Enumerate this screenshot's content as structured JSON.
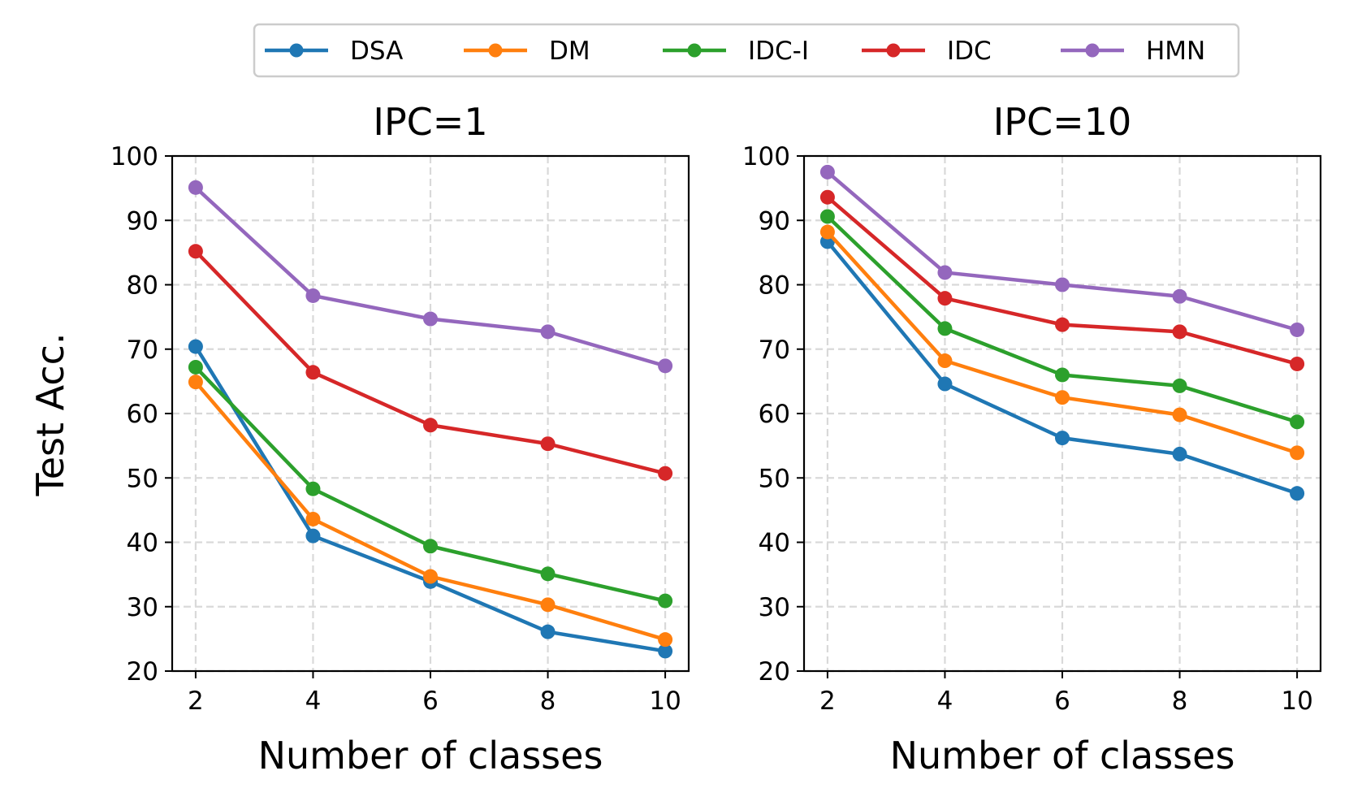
{
  "figure": {
    "ylabel": "Test Acc.",
    "legend": {
      "placement": "top-center",
      "entries": [
        {
          "name": "DSA",
          "color": "#1f77b4"
        },
        {
          "name": "DM",
          "color": "#ff7f0e"
        },
        {
          "name": "IDC-I",
          "color": "#2ca02c"
        },
        {
          "name": "IDC",
          "color": "#d62728"
        },
        {
          "name": "HMN",
          "color": "#9467bd"
        }
      ]
    }
  },
  "chart_data": [
    {
      "type": "line",
      "title": "IPC=1",
      "xlabel": "Number of classes",
      "ylabel": "Test Acc.",
      "x": [
        2,
        4,
        6,
        8,
        10
      ],
      "xticks": [
        "2",
        "4",
        "6",
        "8",
        "10"
      ],
      "yticks": [
        "20",
        "30",
        "40",
        "50",
        "60",
        "70",
        "80",
        "90",
        "100"
      ],
      "xlim": [
        1.6,
        10.4
      ],
      "ylim": [
        20,
        100
      ],
      "grid": true,
      "series": [
        {
          "name": "DSA",
          "color": "#1f77b4",
          "values": [
            70.4,
            41.0,
            33.9,
            26.1,
            23.1
          ]
        },
        {
          "name": "DM",
          "color": "#ff7f0e",
          "values": [
            64.9,
            43.6,
            34.7,
            30.3,
            24.9
          ]
        },
        {
          "name": "IDC-I",
          "color": "#2ca02c",
          "values": [
            67.2,
            48.3,
            39.4,
            35.1,
            30.9
          ]
        },
        {
          "name": "IDC",
          "color": "#d62728",
          "values": [
            85.2,
            66.4,
            58.2,
            55.3,
            50.7
          ]
        },
        {
          "name": "HMN",
          "color": "#9467bd",
          "values": [
            95.1,
            78.3,
            74.7,
            72.7,
            67.4
          ]
        }
      ]
    },
    {
      "type": "line",
      "title": "IPC=10",
      "xlabel": "Number of classes",
      "ylabel": "",
      "x": [
        2,
        4,
        6,
        8,
        10
      ],
      "xticks": [
        "2",
        "4",
        "6",
        "8",
        "10"
      ],
      "yticks": [
        "20",
        "30",
        "40",
        "50",
        "60",
        "70",
        "80",
        "90",
        "100"
      ],
      "xlim": [
        1.6,
        10.4
      ],
      "ylim": [
        20,
        100
      ],
      "grid": true,
      "series": [
        {
          "name": "DSA",
          "color": "#1f77b4",
          "values": [
            86.7,
            64.6,
            56.2,
            53.7,
            47.6
          ]
        },
        {
          "name": "DM",
          "color": "#ff7f0e",
          "values": [
            88.2,
            68.2,
            62.5,
            59.8,
            53.9
          ]
        },
        {
          "name": "IDC-I",
          "color": "#2ca02c",
          "values": [
            90.6,
            73.2,
            66.0,
            64.3,
            58.7
          ]
        },
        {
          "name": "IDC",
          "color": "#d62728",
          "values": [
            93.6,
            77.9,
            73.8,
            72.7,
            67.7
          ]
        },
        {
          "name": "HMN",
          "color": "#9467bd",
          "values": [
            97.5,
            81.9,
            80.0,
            78.2,
            73.0
          ]
        }
      ]
    }
  ]
}
